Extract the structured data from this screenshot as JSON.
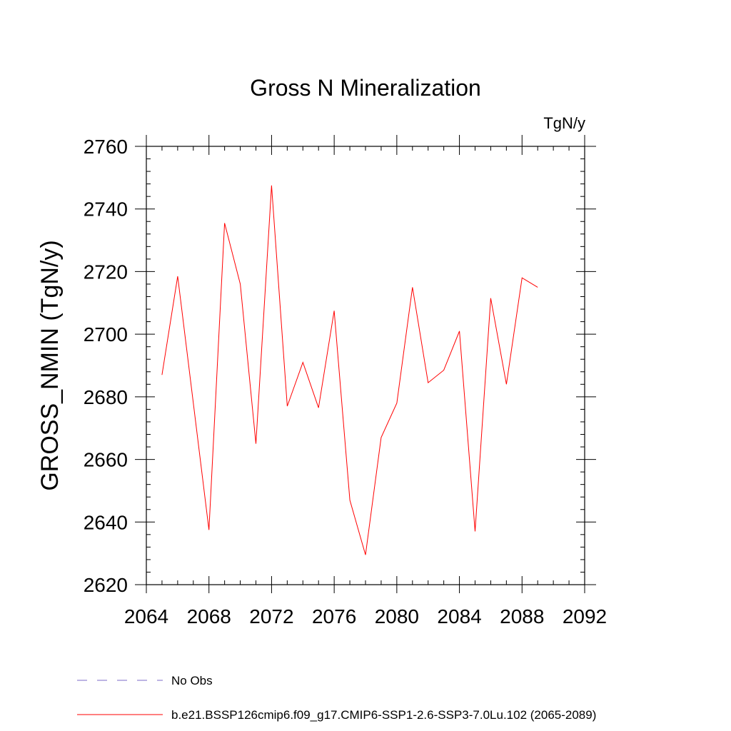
{
  "chart_data": {
    "type": "line",
    "title": "Gross N Mineralization",
    "units_label": "TgN/y",
    "xlabel": "",
    "ylabel": "GROSS_NMIN  (TgN/y)",
    "xlim": [
      2064,
      2092
    ],
    "ylim": [
      2620,
      2760
    ],
    "x_ticks": [
      2064,
      2068,
      2072,
      2076,
      2080,
      2084,
      2088,
      2092
    ],
    "y_ticks": [
      2620,
      2640,
      2660,
      2680,
      2700,
      2720,
      2740,
      2760
    ],
    "series": [
      {
        "name": "b.e21.BSSP126cmip6.f09_g17.CMIP6-SSP1-2.6-SSP3-7.0Lu.102 (2065-2089)",
        "color": "#ff0000",
        "x": [
          2065,
          2066,
          2067,
          2068,
          2069,
          2070,
          2071,
          2072,
          2073,
          2074,
          2075,
          2076,
          2077,
          2078,
          2079,
          2080,
          2081,
          2082,
          2083,
          2084,
          2085,
          2086,
          2087,
          2088,
          2089
        ],
        "values": [
          2687,
          2718.5,
          2678,
          2637.5,
          2735.5,
          2716,
          2665,
          2747.5,
          2677,
          2691,
          2676.5,
          2707.5,
          2647,
          2629.5,
          2667,
          2678,
          2715,
          2684.5,
          2688.5,
          2701,
          2637,
          2711.5,
          2684,
          2718,
          2715
        ]
      }
    ],
    "legend": [
      {
        "label": "No Obs",
        "color": "#7b68c8",
        "style": "dashed"
      },
      {
        "label": "b.e21.BSSP126cmip6.f09_g17.CMIP6-SSP1-2.6-SSP3-7.0Lu.102 (2065-2089)",
        "color": "#ff0000",
        "style": "solid"
      }
    ]
  }
}
